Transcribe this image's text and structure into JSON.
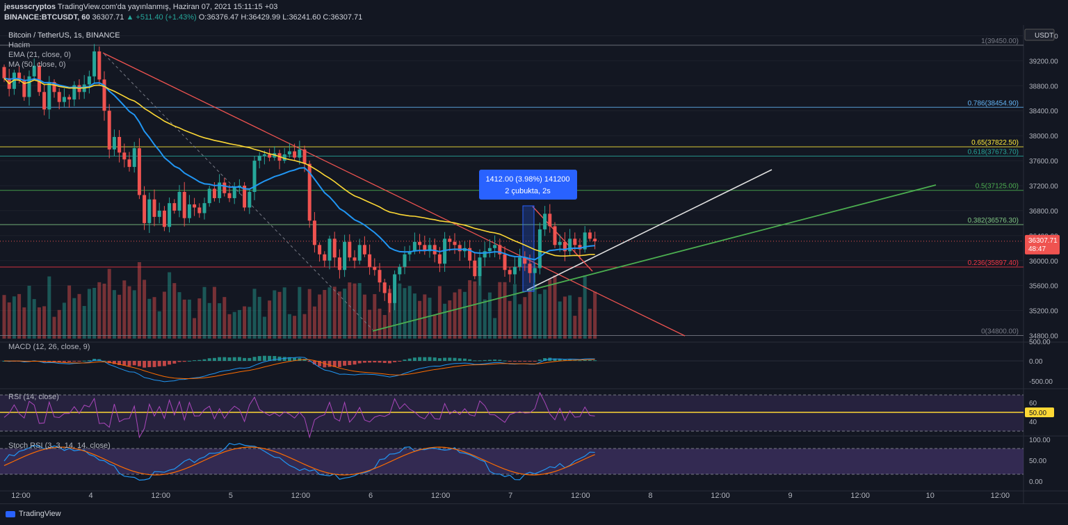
{
  "header": {
    "line1": {
      "author": "jesusscryptos",
      "text": "TradingView.com'da yayınlanmış, Haziran 07, 2021 15:11:15 +03"
    },
    "line2": {
      "symbol": "BINANCE:BTCUSDT, 60",
      "price": "36307.71",
      "change": "▲ +511.40 (+1.43%)",
      "o": "O:36376.47",
      "h": "H:36429.99",
      "l": "L:36241.60",
      "c": "C:36307.71"
    }
  },
  "legend": {
    "title": "Bitcoin / TetherUS, 1s, BINANCE",
    "volume": "Hacim",
    "ema": "EMA (21, close, 0)",
    "ma": "MA (50, close, 0)",
    "macd": "MACD (12, 26, close, 9)",
    "rsi": "RSI (14, close)",
    "stoch": "Stoch RSI (3, 3, 14, 14, close)"
  },
  "currency": "USDT",
  "price_tag": {
    "price": "36307.71",
    "timer": "48:47"
  },
  "rsi_tag": "50.00",
  "measure_box": {
    "line1": "1412.00 (3.98%) 141200",
    "line2": "2 çubukta, 2s"
  },
  "chart_data": {
    "type": "candlestick",
    "interval": "1h",
    "y_axis_ticks": [
      39600,
      39200,
      38800,
      38400,
      38000,
      37600,
      37200,
      36800,
      36400,
      36000,
      35600,
      35200,
      34800
    ],
    "y_axis_labels": [
      "39600.00",
      "39200.00",
      "38800.00",
      "38400.00",
      "38000.00",
      "37600.00",
      "37200.00",
      "36800.00",
      "36400.00",
      "36000.00",
      "35600.00",
      "35200.00",
      "34800.00"
    ],
    "ylim": [
      34750,
      39750
    ],
    "x_axis_labels": [
      "12:00",
      "4",
      "12:00",
      "5",
      "12:00",
      "6",
      "12:00",
      "7",
      "12:00",
      "8",
      "12:00",
      "9",
      "12:00",
      "10",
      "12:00"
    ],
    "fibonacci": [
      {
        "label": "1(39450.00)",
        "level": 39450,
        "color": "#787b86"
      },
      {
        "label": "0.786(38454.90)",
        "level": 38454.9,
        "color": "#64b5f6"
      },
      {
        "label": "0.65(37822.50)",
        "level": 37822.5,
        "color": "#ffeb3b"
      },
      {
        "label": "0.618(37673.70)",
        "level": 37673.7,
        "color": "#26a69a"
      },
      {
        "label": "0.5(37125.00)",
        "level": 37125,
        "color": "#4caf50"
      },
      {
        "label": "0.382(36576.30)",
        "level": 36576.3,
        "color": "#81c784"
      },
      {
        "label": "0.236(35897.40)",
        "level": 35897.4,
        "color": "#f23645"
      },
      {
        "label": "0(34800.00)",
        "level": 34800,
        "color": "#787b86"
      }
    ],
    "candles_close": [
      38920,
      38750,
      39010,
      38880,
      38620,
      38950,
      39120,
      38700,
      38420,
      38860,
      38700,
      38540,
      38620,
      38580,
      38810,
      38700,
      38820,
      38950,
      39350,
      38900,
      38400,
      37780,
      37980,
      37730,
      37620,
      37500,
      37800,
      37050,
      36600,
      36980,
      36700,
      36800,
      36540,
      36920,
      36800,
      37100,
      36680,
      36900,
      36850,
      36760,
      36920,
      37150,
      37000,
      37250,
      37080,
      37000,
      37180,
      37200,
      36850,
      37100,
      37600,
      37680,
      37700,
      37650,
      37720,
      37600,
      37700,
      37750,
      37650,
      37780,
      37550,
      36640,
      36250,
      36100,
      36000,
      36350,
      36050,
      35850,
      36300,
      36050,
      36000,
      36250,
      36100,
      35900,
      35850,
      35650,
      35480,
      35320,
      35780,
      35900,
      36100,
      36150,
      36300,
      36250,
      36150,
      36250,
      36100,
      35950,
      36350,
      36300,
      36250,
      36150,
      36200,
      36000,
      35750,
      36050,
      36150,
      36200,
      36250,
      36100,
      35850,
      35780,
      35900,
      36050,
      35950,
      35800,
      35880,
      36500,
      36750,
      36550,
      36250,
      36300,
      36150,
      36350,
      36250,
      36180,
      36450,
      36350,
      36310
    ],
    "volume_max": 28000,
    "macd_range": [
      -700,
      700
    ],
    "macd_ticks": [
      "500.00",
      "0.00",
      "-500.00"
    ],
    "rsi_ticks": [
      "60",
      "40"
    ],
    "rsi_level": 50,
    "stoch_ticks": [
      "100.00",
      "50.00",
      "0.00"
    ]
  },
  "colors": {
    "up": "#26a69a",
    "down": "#ef5350",
    "ema": "#2196f3",
    "ma": "#fdd835",
    "bg": "#131722"
  },
  "footer": {
    "brand": "TradingView"
  }
}
